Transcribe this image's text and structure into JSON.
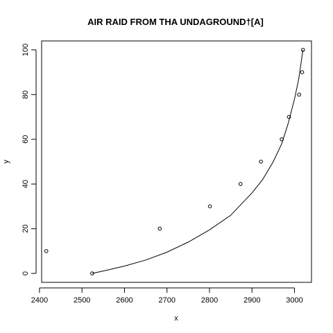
{
  "chart_data": {
    "type": "scatter",
    "title": "AIR RAID FROM THA UNDAGROUND†[A]",
    "xlabel": "x",
    "ylabel": "y",
    "xlim": [
      2405,
      3040
    ],
    "ylim": [
      -4,
      104
    ],
    "x_ticks": [
      2400,
      2500,
      2600,
      2700,
      2800,
      2900,
      3000
    ],
    "y_ticks": [
      0,
      20,
      40,
      60,
      80,
      100
    ],
    "grid": false,
    "points": [
      {
        "x": 2416,
        "y": 10
      },
      {
        "x": 2524,
        "y": 0
      },
      {
        "x": 2683,
        "y": 20
      },
      {
        "x": 2801,
        "y": 30
      },
      {
        "x": 2873,
        "y": 40
      },
      {
        "x": 2921,
        "y": 50
      },
      {
        "x": 2970,
        "y": 60
      },
      {
        "x": 2987,
        "y": 70
      },
      {
        "x": 3011,
        "y": 80
      },
      {
        "x": 3018,
        "y": 90
      },
      {
        "x": 3020,
        "y": 100
      }
    ],
    "fit_curve": [
      {
        "x": 2524,
        "y": 0
      },
      {
        "x": 2560,
        "y": 1.5
      },
      {
        "x": 2600,
        "y": 3.3
      },
      {
        "x": 2650,
        "y": 6
      },
      {
        "x": 2700,
        "y": 9.5
      },
      {
        "x": 2750,
        "y": 14
      },
      {
        "x": 2800,
        "y": 19.5
      },
      {
        "x": 2850,
        "y": 26
      },
      {
        "x": 2900,
        "y": 36
      },
      {
        "x": 2925,
        "y": 42
      },
      {
        "x": 2950,
        "y": 50
      },
      {
        "x": 2970,
        "y": 58
      },
      {
        "x": 2985,
        "y": 67
      },
      {
        "x": 3000,
        "y": 78
      },
      {
        "x": 3010,
        "y": 87
      },
      {
        "x": 3020,
        "y": 100
      }
    ]
  }
}
